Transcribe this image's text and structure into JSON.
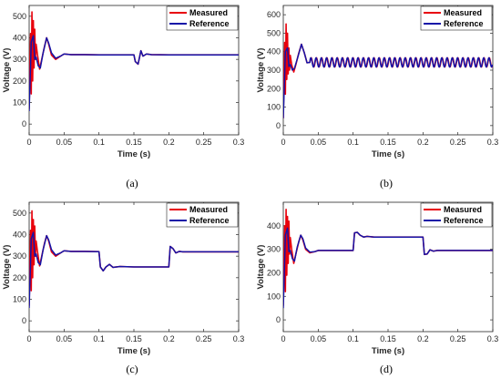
{
  "chart_data": [
    {
      "type": "line",
      "caption": "(a)",
      "xlabel": "Time (s)",
      "ylabel": "Voltage (V)",
      "xlim": [
        0,
        0.3
      ],
      "ylim": [
        -50,
        550
      ],
      "xticks": [
        "0",
        "0.05",
        "0.1",
        "0.15",
        "0.2",
        "0.25",
        "0.3"
      ],
      "yticks": [
        "0",
        "100",
        "200",
        "300",
        "400",
        "500"
      ],
      "legend": "top-right",
      "series": [
        {
          "name": "Measured",
          "color": "#e8000b",
          "x": [
            0,
            0.002,
            0.003,
            0.004,
            0.005,
            0.006,
            0.007,
            0.008,
            0.009,
            0.01,
            0.012,
            0.015,
            0.018,
            0.022,
            0.025,
            0.028,
            0.032,
            0.038,
            0.045,
            0.05,
            0.06,
            0.08,
            0.1,
            0.15,
            0.152,
            0.156,
            0.16,
            0.163,
            0.168,
            0.175,
            0.2,
            0.3
          ],
          "y": [
            70,
            420,
            140,
            520,
            200,
            480,
            260,
            440,
            300,
            370,
            320,
            255,
            300,
            360,
            400,
            370,
            320,
            300,
            315,
            325,
            322,
            322,
            321,
            321,
            290,
            278,
            340,
            315,
            325,
            322,
            321,
            321
          ]
        },
        {
          "name": "Reference",
          "color": "#1414a8",
          "x": [
            0,
            0.003,
            0.006,
            0.008,
            0.01,
            0.013,
            0.016,
            0.02,
            0.025,
            0.028,
            0.032,
            0.038,
            0.045,
            0.05,
            0.06,
            0.08,
            0.1,
            0.15,
            0.152,
            0.156,
            0.16,
            0.163,
            0.168,
            0.175,
            0.2,
            0.3
          ],
          "y": [
            60,
            380,
            410,
            300,
            310,
            270,
            260,
            330,
            400,
            375,
            330,
            305,
            315,
            325,
            322,
            322,
            321,
            321,
            290,
            278,
            340,
            315,
            325,
            322,
            321,
            321
          ]
        }
      ]
    },
    {
      "type": "line",
      "caption": "(b)",
      "xlabel": "Time (s)",
      "ylabel": "Voltage (V)",
      "xlim": [
        0,
        0.3
      ],
      "ylim": [
        -50,
        650
      ],
      "xticks": [
        "0",
        "0.05",
        "0.1",
        "0.15",
        "0.2",
        "0.25",
        "0.3"
      ],
      "yticks": [
        "0",
        "100",
        "200",
        "300",
        "400",
        "500",
        "600"
      ],
      "legend": "top-right",
      "oscillation": {
        "start": 0.038,
        "end": 0.3,
        "period": 0.0075,
        "center": 342,
        "amplitude": 25
      },
      "series": [
        {
          "name": "Measured",
          "color": "#e8000b",
          "x": [
            0,
            0.002,
            0.003,
            0.004,
            0.005,
            0.006,
            0.007,
            0.008,
            0.009,
            0.01,
            0.012,
            0.015,
            0.018,
            0.022,
            0.026,
            0.03,
            0.034,
            0.038
          ],
          "y": [
            40,
            450,
            170,
            550,
            250,
            500,
            280,
            420,
            300,
            380,
            330,
            290,
            330,
            390,
            440,
            395,
            340,
            342
          ]
        },
        {
          "name": "Reference",
          "color": "#1414a8",
          "x": [
            0,
            0.003,
            0.006,
            0.008,
            0.01,
            0.013,
            0.016,
            0.02,
            0.026,
            0.03,
            0.034,
            0.038
          ],
          "y": [
            40,
            400,
            420,
            320,
            330,
            300,
            310,
            360,
            440,
            395,
            340,
            342
          ]
        }
      ]
    },
    {
      "type": "line",
      "caption": "(c)",
      "xlabel": "Time (s)",
      "ylabel": "Voltage (V)",
      "xlim": [
        0,
        0.3
      ],
      "ylim": [
        -50,
        550
      ],
      "xticks": [
        "0",
        "0.05",
        "0.1",
        "0.15",
        "0.2",
        "0.25",
        "0.3"
      ],
      "yticks": [
        "0",
        "100",
        "200",
        "300",
        "400",
        "500"
      ],
      "legend": "top-right",
      "series": [
        {
          "name": "Measured",
          "color": "#e8000b",
          "x": [
            0,
            0.002,
            0.003,
            0.004,
            0.005,
            0.006,
            0.007,
            0.008,
            0.009,
            0.01,
            0.012,
            0.015,
            0.018,
            0.022,
            0.025,
            0.028,
            0.032,
            0.038,
            0.045,
            0.05,
            0.06,
            0.08,
            0.1,
            0.102,
            0.106,
            0.11,
            0.115,
            0.12,
            0.13,
            0.15,
            0.2,
            0.202,
            0.206,
            0.21,
            0.215,
            0.22,
            0.23,
            0.25,
            0.3
          ],
          "y": [
            70,
            420,
            140,
            510,
            200,
            470,
            260,
            440,
            300,
            370,
            320,
            255,
            300,
            360,
            395,
            370,
            320,
            300,
            315,
            325,
            322,
            322,
            321,
            250,
            232,
            250,
            262,
            248,
            252,
            250,
            250,
            345,
            335,
            315,
            322,
            320,
            320,
            320,
            320
          ]
        },
        {
          "name": "Reference",
          "color": "#1414a8",
          "x": [
            0,
            0.003,
            0.006,
            0.008,
            0.01,
            0.013,
            0.016,
            0.02,
            0.025,
            0.028,
            0.032,
            0.038,
            0.045,
            0.05,
            0.06,
            0.08,
            0.1,
            0.102,
            0.106,
            0.11,
            0.115,
            0.12,
            0.13,
            0.15,
            0.2,
            0.202,
            0.206,
            0.21,
            0.215,
            0.22,
            0.23,
            0.25,
            0.3
          ],
          "y": [
            60,
            380,
            410,
            300,
            310,
            270,
            260,
            330,
            395,
            375,
            330,
            305,
            315,
            325,
            322,
            322,
            321,
            250,
            232,
            250,
            262,
            248,
            252,
            250,
            250,
            345,
            335,
            315,
            322,
            320,
            320,
            320,
            320
          ]
        }
      ]
    },
    {
      "type": "line",
      "caption": "(d)",
      "xlabel": "Time (s)",
      "ylabel": "Voltage (V)",
      "xlim": [
        0,
        0.3
      ],
      "ylim": [
        -50,
        500
      ],
      "xticks": [
        "0",
        "0.05",
        "0.1",
        "0.15",
        "0.2",
        "0.25",
        "0.3"
      ],
      "yticks": [
        "0",
        "100",
        "200",
        "300",
        "400"
      ],
      "legend": "top-right",
      "series": [
        {
          "name": "Measured",
          "color": "#e8000b",
          "x": [
            0,
            0.002,
            0.003,
            0.004,
            0.005,
            0.006,
            0.007,
            0.008,
            0.009,
            0.01,
            0.012,
            0.015,
            0.018,
            0.022,
            0.025,
            0.028,
            0.032,
            0.038,
            0.045,
            0.05,
            0.06,
            0.08,
            0.1,
            0.102,
            0.106,
            0.11,
            0.115,
            0.12,
            0.13,
            0.15,
            0.2,
            0.202,
            0.206,
            0.21,
            0.215,
            0.22,
            0.23,
            0.25,
            0.3
          ],
          "y": [
            60,
            400,
            120,
            470,
            190,
            440,
            240,
            420,
            280,
            350,
            300,
            240,
            280,
            330,
            360,
            340,
            300,
            285,
            290,
            295,
            295,
            295,
            295,
            370,
            372,
            360,
            352,
            355,
            352,
            352,
            352,
            278,
            280,
            298,
            292,
            295,
            295,
            295,
            295
          ]
        },
        {
          "name": "Reference",
          "color": "#1414a8",
          "x": [
            0,
            0.003,
            0.006,
            0.008,
            0.01,
            0.013,
            0.016,
            0.02,
            0.025,
            0.028,
            0.032,
            0.038,
            0.045,
            0.05,
            0.06,
            0.08,
            0.1,
            0.102,
            0.106,
            0.11,
            0.115,
            0.12,
            0.13,
            0.15,
            0.2,
            0.202,
            0.206,
            0.21,
            0.215,
            0.22,
            0.23,
            0.25,
            0.3
          ],
          "y": [
            50,
            360,
            390,
            290,
            295,
            260,
            250,
            310,
            360,
            345,
            305,
            288,
            290,
            295,
            295,
            295,
            295,
            370,
            372,
            360,
            352,
            355,
            352,
            352,
            352,
            278,
            280,
            298,
            292,
            295,
            295,
            295,
            295
          ]
        }
      ]
    }
  ]
}
